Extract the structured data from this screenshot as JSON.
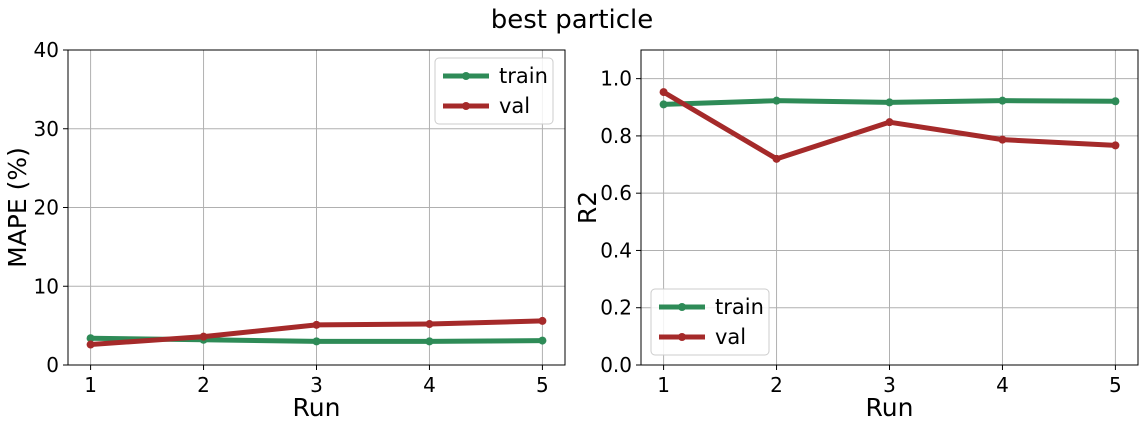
{
  "figure": {
    "title": "best particle"
  },
  "colors": {
    "train": "#2e8b57",
    "val": "#a52a2a"
  },
  "chart_data": [
    {
      "type": "line",
      "x": [
        1,
        2,
        3,
        4,
        5
      ],
      "xticks": [
        "1",
        "2",
        "3",
        "4",
        "5"
      ],
      "xlabel": "Run",
      "ylabel": "MAPE (%)",
      "ylim": [
        0,
        40
      ],
      "yticks": [
        "0",
        "10",
        "20",
        "30",
        "40"
      ],
      "grid": true,
      "legend": "top-right",
      "series": [
        {
          "name": "train",
          "color": "#2e8b57",
          "values": [
            3.4,
            3.2,
            3.0,
            3.0,
            3.1
          ]
        },
        {
          "name": "val",
          "color": "#a52a2a",
          "values": [
            2.6,
            3.6,
            5.1,
            5.2,
            5.6
          ]
        }
      ]
    },
    {
      "type": "line",
      "x": [
        1,
        2,
        3,
        4,
        5
      ],
      "xticks": [
        "1",
        "2",
        "3",
        "4",
        "5"
      ],
      "xlabel": "Run",
      "ylabel": "R2",
      "ylim": [
        0,
        1.1
      ],
      "yticks": [
        "0.0",
        "0.2",
        "0.4",
        "0.6",
        "0.8",
        "1.0"
      ],
      "grid": true,
      "legend": "bottom-left",
      "series": [
        {
          "name": "train",
          "color": "#2e8b57",
          "values": [
            0.91,
            0.923,
            0.917,
            0.923,
            0.921
          ]
        },
        {
          "name": "val",
          "color": "#a52a2a",
          "values": [
            0.953,
            0.72,
            0.848,
            0.787,
            0.767
          ]
        }
      ]
    }
  ]
}
